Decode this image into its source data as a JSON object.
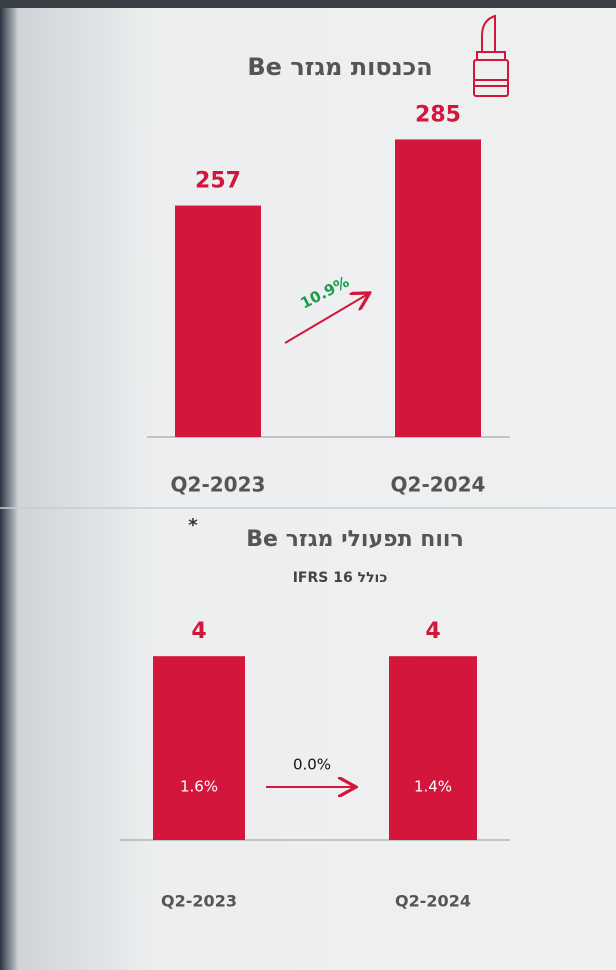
{
  "chart_data": [
    {
      "type": "bar",
      "title": "הכנסות מגזר Be",
      "categories": [
        "Q2-2023",
        "Q2-2024"
      ],
      "values": [
        257,
        285
      ],
      "color": "#d4163c",
      "ylim": [
        159,
        289
      ],
      "change_label": "10.9%",
      "change_color": "#1a9e4b"
    },
    {
      "type": "bar",
      "title": "רווח תפעולי מגזר Be",
      "title_note": "*",
      "subtitle": "כולל IFRS 16",
      "categories": [
        "Q2-2023",
        "Q2-2024"
      ],
      "values": [
        4,
        4
      ],
      "color": "#d4163c",
      "ylim": [
        0,
        4.2
      ],
      "inner_labels": [
        "1.6%",
        "1.4%"
      ],
      "change_label": "0.0%",
      "change_color": "#111111"
    }
  ]
}
